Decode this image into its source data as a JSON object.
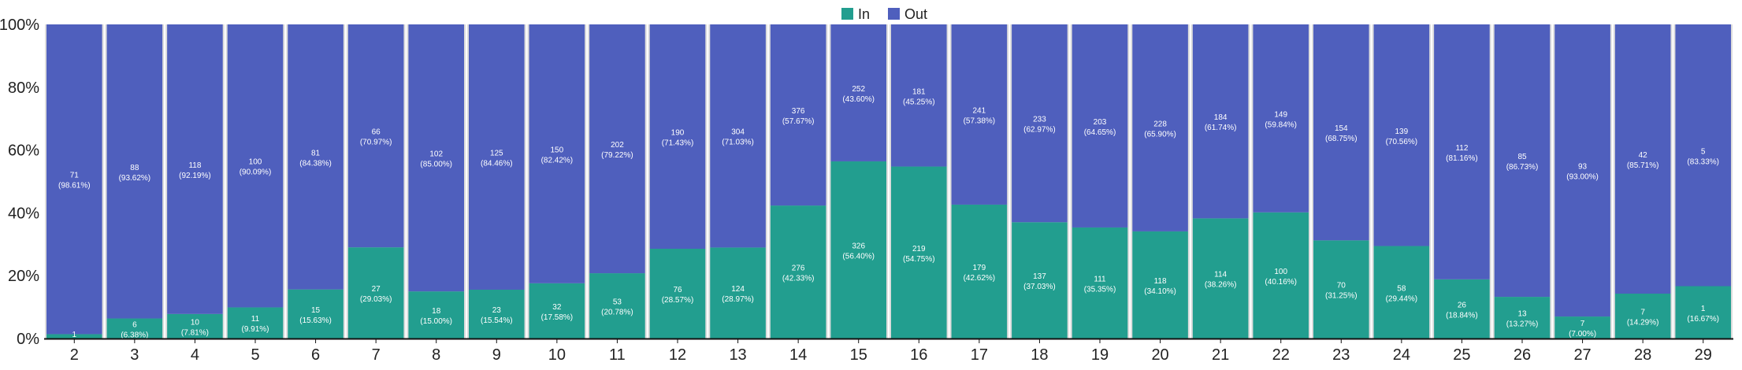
{
  "chart_data": {
    "type": "bar",
    "stacked": true,
    "normalized": true,
    "categories": [
      "2",
      "3",
      "4",
      "5",
      "6",
      "7",
      "8",
      "9",
      "10",
      "11",
      "12",
      "13",
      "14",
      "15",
      "16",
      "17",
      "18",
      "19",
      "20",
      "21",
      "22",
      "23",
      "24",
      "25",
      "26",
      "27",
      "28",
      "29"
    ],
    "series": [
      {
        "name": "In",
        "color": "#229e8f",
        "values": [
          1,
          6,
          10,
          11,
          15,
          27,
          18,
          23,
          32,
          53,
          76,
          124,
          276,
          326,
          219,
          179,
          137,
          111,
          118,
          114,
          100,
          70,
          58,
          26,
          13,
          7,
          7,
          1
        ],
        "percent_labels": [
          "",
          "(6.38%)",
          "(7.81%)",
          "(9.91%)",
          "(15.63%)",
          "(29.03%)",
          "(15.00%)",
          "(15.54%)",
          "(17.58%)",
          "(20.78%)",
          "(28.57%)",
          "(28.97%)",
          "(42.33%)",
          "(56.40%)",
          "(54.75%)",
          "(42.62%)",
          "(37.03%)",
          "(35.35%)",
          "(34.10%)",
          "(38.26%)",
          "(40.16%)",
          "(31.25%)",
          "(29.44%)",
          "(18.84%)",
          "(13.27%)",
          "(7.00%)",
          "(14.29%)",
          "(16.67%)"
        ]
      },
      {
        "name": "Out",
        "color": "#4f5fbd",
        "values": [
          71,
          88,
          118,
          100,
          81,
          66,
          102,
          125,
          150,
          202,
          190,
          304,
          376,
          252,
          181,
          241,
          233,
          203,
          228,
          184,
          149,
          154,
          139,
          112,
          85,
          93,
          42,
          5
        ],
        "percent_labels": [
          "(98.61%)",
          "(93.62%)",
          "(92.19%)",
          "(90.09%)",
          "(84.38%)",
          "(70.97%)",
          "(85.00%)",
          "(84.46%)",
          "(82.42%)",
          "(79.22%)",
          "(71.43%)",
          "(71.03%)",
          "(57.67%)",
          "(43.60%)",
          "(45.25%)",
          "(57.38%)",
          "(62.97%)",
          "(64.65%)",
          "(65.90%)",
          "(61.74%)",
          "(59.84%)",
          "(68.75%)",
          "(70.56%)",
          "(81.16%)",
          "(86.73%)",
          "(93.00%)",
          "(85.71%)",
          "(83.33%)"
        ]
      }
    ],
    "ylim": [
      0,
      100
    ],
    "yticks": [
      "0%",
      "20%",
      "40%",
      "60%",
      "80%",
      "100%"
    ],
    "legend": "top-center",
    "bar_border_color": "#dcdcdc"
  }
}
